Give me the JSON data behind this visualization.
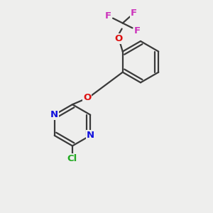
{
  "background_color": "#eeeeed",
  "bond_color": "#3a3a3a",
  "N_color": "#1010dd",
  "O_color": "#dd1010",
  "F_color": "#cc33bb",
  "Cl_color": "#22aa22",
  "lw": 1.6,
  "figsize": [
    3.0,
    3.0
  ],
  "dpi": 100,
  "xlim": [
    -1.3,
    1.3
  ],
  "ylim": [
    -1.35,
    1.25
  ]
}
